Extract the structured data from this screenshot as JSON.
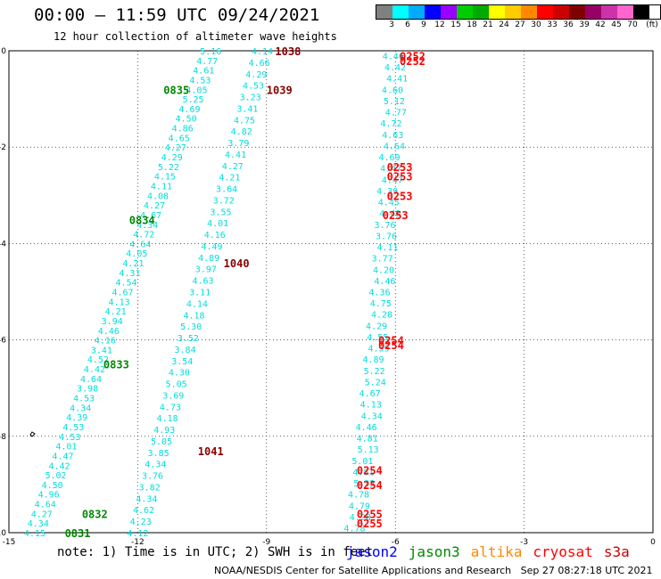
{
  "header": {
    "title": "00:00 – 11:59 UTC 09/24/2021",
    "subtitle": "12 hour collection of altimeter wave heights"
  },
  "legend": {
    "unit": "(ft)",
    "colors": [
      "#808080",
      "#00ffff",
      "#00aaff",
      "#0000ff",
      "#9900ff",
      "#00cc00",
      "#00aa00",
      "#ffff00",
      "#ffcc00",
      "#ff8800",
      "#ff0000",
      "#cc0000",
      "#800000",
      "#990066",
      "#cc33aa",
      "#ff66cc",
      "#000000"
    ],
    "labels": [
      "3",
      "6",
      "9",
      "12",
      "15",
      "18",
      "21",
      "24",
      "27",
      "30",
      "33",
      "36",
      "39",
      "42",
      "45",
      "70"
    ]
  },
  "axes": {
    "lon_ticks": [
      "-15",
      "-12",
      "-9",
      "-6",
      "-3",
      "0"
    ],
    "lat_ticks": [
      "0",
      "-2",
      "-4",
      "-6",
      "-8",
      "-10"
    ],
    "xlim": [
      -15,
      0
    ],
    "ylim": [
      -10,
      0
    ]
  },
  "tracks": [
    {
      "name": "jason3-descending",
      "values": [
        "5.16",
        "4.77",
        "4.61",
        "4.53",
        "4.05",
        "5.25",
        "4.69",
        "4.50",
        "4.86",
        "4.65",
        "4.27",
        "4.29",
        "5.22",
        "4.15",
        "4.11",
        "4.08",
        "4.27",
        "4.67",
        "4.34",
        "4.72",
        "4.64",
        "4.05",
        "4.21",
        "4.31",
        "4.54",
        "4.67",
        "4.13",
        "4.21",
        "3.94",
        "4.46",
        "4.16",
        "3.41",
        "4.52",
        "4.42",
        "4.64",
        "3.98",
        "4.53",
        "4.34",
        "4.39",
        "4.53",
        "4.53",
        "4.01",
        "4.47",
        "4.42",
        "5.02",
        "4.50",
        "4.96",
        "4.64",
        "4.27",
        "4.34",
        "4.15"
      ],
      "lon_start": -10.3,
      "lon_end": -14.4,
      "lat_start": 0.0,
      "lat_end": -10.0
    },
    {
      "name": "jason3-second",
      "values": [
        "4.14",
        "4.66",
        "4.29",
        "4.53",
        "3.23",
        "3.41",
        "4.75",
        "4.82",
        "3.79",
        "4.41",
        "4.27",
        "4.21",
        "3.64",
        "3.72",
        "3.55",
        "4.01",
        "4.16",
        "4.49",
        "4.89",
        "3.97",
        "4.63",
        "3.11",
        "4.14",
        "4.18",
        "5.30",
        "3.52",
        "3.84",
        "3.54",
        "4.30",
        "5.05",
        "3.69",
        "4.73",
        "4.18",
        "4.93",
        "5.05",
        "3.85",
        "4.34",
        "3.76",
        "3.82",
        "4.34",
        "4.62",
        "4.23",
        "4.12"
      ],
      "lon_start": -9.1,
      "lon_end": -12.0,
      "lat_start": 0.0,
      "lat_end": -10.0
    },
    {
      "name": "cryosat",
      "values": [
        "4.46",
        "4.42",
        "4.41",
        "4.60",
        "5.12",
        "4.77",
        "4.72",
        "4.63",
        "4.64",
        "4.69",
        "4.47",
        "4.47",
        "4.39",
        "4.45",
        "4.40",
        "3.76",
        "3.76",
        "4.11",
        "3.77",
        "4.20",
        "4.46",
        "4.36",
        "4.75",
        "4.28",
        "4.29",
        "4.55",
        "4.59",
        "4.89",
        "5.22",
        "5.24",
        "4.67",
        "4.13",
        "4.34",
        "4.46",
        "4.81",
        "5.13",
        "5.01",
        "4.81",
        "5.33",
        "4.78",
        "4.79",
        "4.28",
        "4.78"
      ],
      "lon_start": -6.0,
      "lon_end": -6.9,
      "lat_start": -0.1,
      "lat_end": -9.9
    }
  ],
  "time_labels": [
    {
      "text": "0835",
      "sat": "jason3",
      "lon": -11.4,
      "lat": -0.8
    },
    {
      "text": "0834",
      "sat": "jason3",
      "lon": -12.2,
      "lat": -3.5
    },
    {
      "text": "0833",
      "sat": "jason3",
      "lon": -12.8,
      "lat": -6.5
    },
    {
      "text": "0832",
      "sat": "jason3",
      "lon": -13.3,
      "lat": -9.6
    },
    {
      "text": "0831",
      "sat": "jason3",
      "lon": -13.7,
      "lat": -10.0
    },
    {
      "text": "1038",
      "sat": "cryosat-dark",
      "lon": -8.8,
      "lat": 0.0
    },
    {
      "text": "1039",
      "sat": "cryosat-dark",
      "lon": -9.0,
      "lat": -0.8
    },
    {
      "text": "1040",
      "sat": "cryosat-dark",
      "lon": -10.0,
      "lat": -4.4
    },
    {
      "text": "1041",
      "sat": "cryosat-dark",
      "lon": -10.6,
      "lat": -8.3
    },
    {
      "text": "0252",
      "sat": "cryosat",
      "lon": -5.9,
      "lat": -0.1
    },
    {
      "text": "0252",
      "sat": "cryosat",
      "lon": -5.9,
      "lat": -0.2
    },
    {
      "text": "0253",
      "sat": "cryosat",
      "lon": -6.2,
      "lat": -2.4
    },
    {
      "text": "0253",
      "sat": "cryosat",
      "lon": -6.2,
      "lat": -2.6
    },
    {
      "text": "0253",
      "sat": "cryosat",
      "lon": -6.2,
      "lat": -3.0
    },
    {
      "text": "0253",
      "sat": "cryosat",
      "lon": -6.3,
      "lat": -3.4
    },
    {
      "text": "0254",
      "sat": "cryosat",
      "lon": -6.4,
      "lat": -6.0
    },
    {
      "text": "0254",
      "sat": "cryosat",
      "lon": -6.4,
      "lat": -6.1
    },
    {
      "text": "0254",
      "sat": "cryosat",
      "lon": -6.9,
      "lat": -8.7
    },
    {
      "text": "0254",
      "sat": "cryosat",
      "lon": -6.9,
      "lat": -9.0
    },
    {
      "text": "0255",
      "sat": "cryosat",
      "lon": -6.9,
      "lat": -9.6
    },
    {
      "text": "0255",
      "sat": "cryosat",
      "lon": -6.9,
      "lat": -9.8
    }
  ],
  "footer": {
    "note": "note: 1) Time is in UTC; 2) SWH is in feet",
    "satellites": [
      {
        "name": "jason2",
        "color": "#0000ff"
      },
      {
        "name": "jason3",
        "color": "#008800"
      },
      {
        "name": "altika",
        "color": "#ff8800"
      },
      {
        "name": "cryosat",
        "color": "#ff0000"
      },
      {
        "name": "s3a",
        "color": "#cc0000"
      }
    ],
    "credit": "NOAA/NESDIS Center for Satellite Applications and Research   Sep 27 08:27:18 UTC 2021"
  }
}
